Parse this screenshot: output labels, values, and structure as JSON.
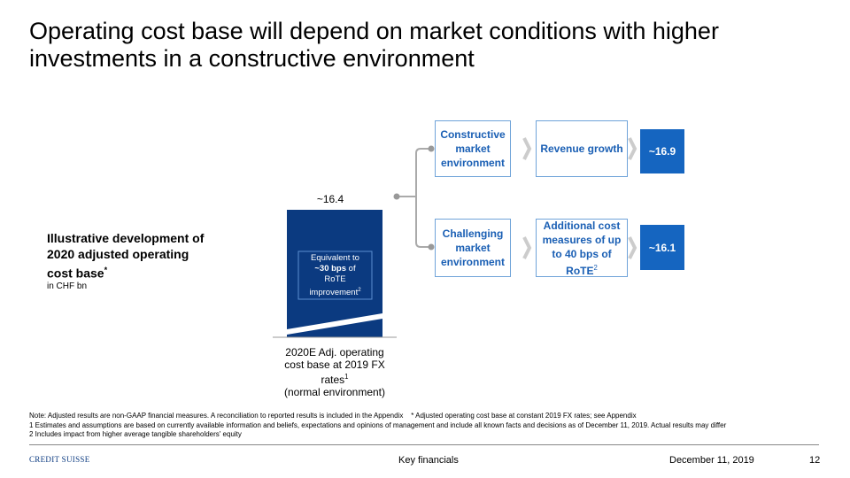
{
  "title": "Operating cost base will depend on market conditions with higher investments in a constructive environment",
  "side_label": {
    "text": "Illustrative development of 2020 adjusted operating cost base",
    "mark": "*",
    "unit": "in CHF bn"
  },
  "bar": {
    "value_label": "~16.4",
    "inner": {
      "line1": "Equivalent to",
      "bold": "~30 bps",
      "rest": "of",
      "line3": "RoTE",
      "line4": "improvement",
      "footnote": "2"
    },
    "caption": {
      "text": "2020E Adj. operating cost base at 2019 FX rates",
      "footnote": "1",
      "line3": "(normal environment)"
    }
  },
  "branches": [
    {
      "scenario": "Constructive market environment",
      "driver": "Revenue growth",
      "driver_footnote": null,
      "result": "~16.9"
    },
    {
      "scenario": "Challenging market environment",
      "driver": "Additional cost measures of up to 40 bps of RoTE",
      "driver_footnote": "2",
      "result": "~16.1"
    }
  ],
  "notes": [
    "Note: Adjusted results are non-GAAP financial measures. A reconciliation to reported results is included in the Appendix",
    "* Adjusted operating cost base at constant 2019 FX rates; see Appendix",
    "1 Estimates and assumptions are based on currently available information and beliefs, expectations and opinions of management and include all known facts and decisions as of December 11, 2019. Actual results may differ",
    "2 Includes impact from higher average tangible shareholders' equity"
  ],
  "footer": {
    "logo": "CREDIT SUISSE",
    "section": "Key financials",
    "date": "December 11, 2019",
    "page": "12"
  }
}
